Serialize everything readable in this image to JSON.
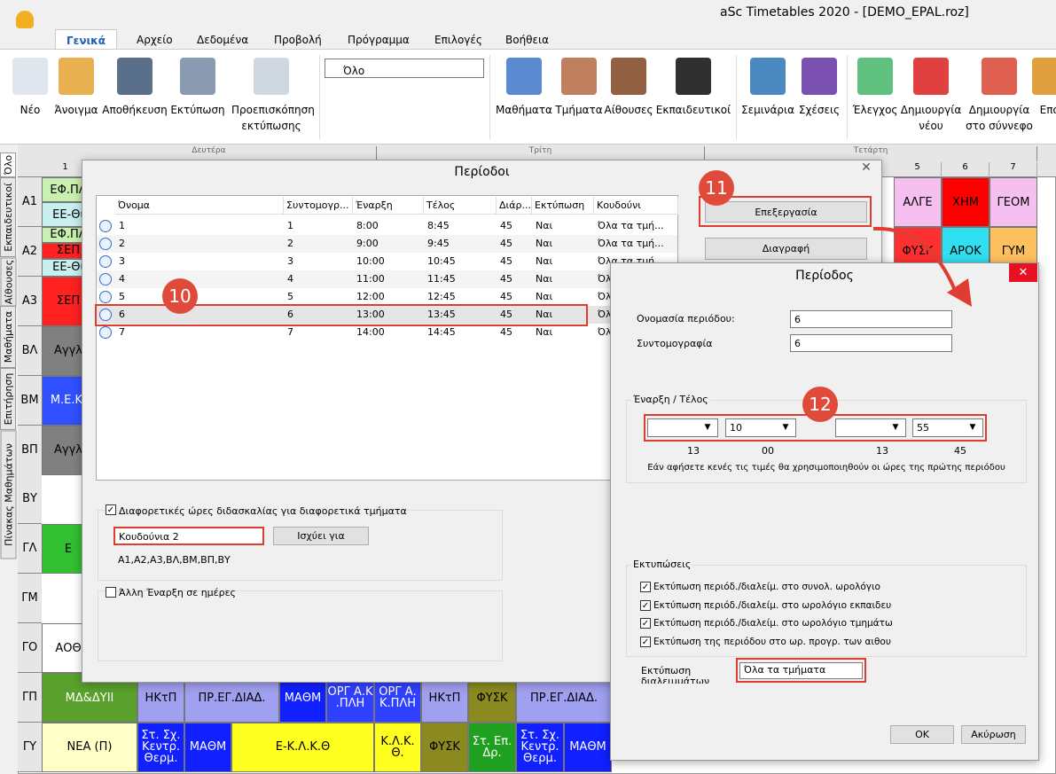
{
  "window": {
    "title": "aSc Timetables 2020  - [DEMO_EPAL.roz]"
  },
  "menu": [
    "Γενικά",
    "Αρχείο",
    "Δεδομένα",
    "Προβολή",
    "Πρόγραμμα",
    "Επιλογές",
    "Βοήθεια"
  ],
  "toolbar": {
    "buttons": [
      "Νέο",
      "Άνοιγμα",
      "Αποθήκευση",
      "Εκτύπωση",
      "Προεπισκόπηση\nεκτύπωσης",
      "Μαθήματα",
      "Τμήματα",
      "Αίθουσες",
      "Εκπαιδευτικοί",
      "Σεμινάρια",
      "Σχέσεις",
      "Έλεγχος",
      "Δημιουργία\nνέου",
      "Δημιουργία\nστο σύννεφο",
      "Επα"
    ],
    "view_select": "Όλο"
  },
  "side_tabs": [
    "Όλο",
    "Εκπαιδευτικοί",
    "Αίθουσες",
    "Μαθήματα",
    "Επιτήρηση",
    "Πίνακας Μαθημάτων"
  ],
  "timetable": {
    "days": [
      "Δευτέρα",
      "Τρίτη",
      "Τετάρτη"
    ],
    "periods": [
      "1",
      "5",
      "6",
      "7"
    ],
    "rows": [
      {
        "label": "Α1",
        "cells": [
          {
            "text": "ΕΦ.ΠΛ",
            "color": "#c8f0b0"
          },
          {
            "text": "ΕΕ-Θι",
            "color": "#c8f0f0"
          },
          {
            "text": "ΑΛΓΕ",
            "color": "#f5c0f0"
          },
          {
            "text": "ΧΗΜ",
            "color": "#ff0000"
          },
          {
            "text": "ΓΕΟΜ",
            "color": "#f5c0f0"
          }
        ]
      },
      {
        "label": "Α2",
        "cells": [
          {
            "text": "ΕΦ.ΠΛ",
            "color": "#c8f0b0"
          },
          {
            "text": "ΣΕΠ",
            "color": "#ff2020"
          },
          {
            "text": "ΕΕ-Θι",
            "color": "#c8f0f0"
          },
          {
            "text": "ΦΥΣΚ",
            "color": "#ff3030"
          },
          {
            "text": "ΑΡΟΚ",
            "color": "#30e0f0"
          },
          {
            "text": "ΓΥΜ",
            "color": "#ffc060"
          }
        ]
      },
      {
        "label": "Α3",
        "cells": [
          {
            "text": "ΣΕΠ",
            "color": "#ff2020"
          }
        ]
      },
      {
        "label": "ΒΛ",
        "cells": [
          {
            "text": "Αγγλ",
            "color": "#808080"
          }
        ]
      },
      {
        "label": "ΒΜ",
        "cells": [
          {
            "text": "Μ.Ε.Κ.",
            "color": "#3050ff"
          }
        ]
      },
      {
        "label": "ΒΠ",
        "cells": [
          {
            "text": "Αγγλ",
            "color": "#808080"
          }
        ]
      },
      {
        "label": "ΒΥ",
        "cells": []
      },
      {
        "label": "ΓΛ",
        "cells": [
          {
            "text": "Ε",
            "color": "#30c030"
          }
        ]
      },
      {
        "label": "ΓΜ",
        "cells": []
      },
      {
        "label": "ΓΟ",
        "cells": [
          {
            "text": "ΑΟΘ",
            "color": "#ffffff"
          }
        ]
      },
      {
        "label": "ΓΠ",
        "cells": [
          {
            "text": "ΜΔ&ΔΥΙΙ",
            "color": "#5aa02c"
          },
          {
            "text": "ΗΚτΠ",
            "color": "#a0a0f0"
          },
          {
            "text": "ΠΡ.ΕΓ.ΔΙΑΔ.",
            "color": "#a0a0f0"
          },
          {
            "text": "ΜΑΘΜ",
            "color": "#1020ff"
          },
          {
            "text": "ΟΡΓ Α.Κ\n.ΠΛΗ",
            "color": "#3040ff"
          },
          {
            "text": "ΟΡΓ Α.\nΚ.ΠΛΗ",
            "color": "#3040ff"
          },
          {
            "text": "ΗΚτΠ",
            "color": "#a0a0f0"
          },
          {
            "text": "ΦΥΣΚ",
            "color": "#8a8a20"
          },
          {
            "text": "ΠΡ.ΕΓ.ΔΙΑΔ.",
            "color": "#a0a0f0"
          }
        ]
      },
      {
        "label": "ΓΥ",
        "cells": [
          {
            "text": "ΝΕΑ (Π)",
            "color": "#ffffc8"
          },
          {
            "text": "Στ. Σχ.\nΚεντρ.\nΘερμ.",
            "color": "#1020ff"
          },
          {
            "text": "ΜΑΘΜ",
            "color": "#1020ff"
          },
          {
            "text": "Ε-Κ.Λ.Κ.Θ",
            "color": "#ffff20"
          },
          {
            "text": "Κ.Λ.Κ.\nΘ.",
            "color": "#ffff20"
          },
          {
            "text": "ΦΥΣΚ",
            "color": "#8a8a20"
          },
          {
            "text": "Στ. Επ.\nΔρ.",
            "color": "#20a020"
          },
          {
            "text": "Στ. Σχ.\nΚεντρ.\nΘερμ.",
            "color": "#1020ff"
          },
          {
            "text": "ΜΑΘΜ",
            "color": "#1020ff"
          }
        ]
      }
    ]
  },
  "periods_dialog": {
    "title": "Περίοδοι",
    "columns": [
      "Όνομα",
      "Συντομογρ...",
      "Έναρξη",
      "Τέλος",
      "Διάρ...",
      "Εκτύπωση",
      "Κουδούνι"
    ],
    "rows": [
      [
        "1",
        "1",
        "8:00",
        "8:45",
        "45",
        "Ναι",
        "Όλα τα τμή..."
      ],
      [
        "2",
        "2",
        "9:00",
        "9:45",
        "45",
        "Ναι",
        "Όλα τα τμή..."
      ],
      [
        "3",
        "3",
        "10:00",
        "10:45",
        "45",
        "Ναι",
        "Όλα τα τμή..."
      ],
      [
        "4",
        "4",
        "11:00",
        "11:45",
        "45",
        "Ναι",
        "Όλα τα τμή..."
      ],
      [
        "5",
        "5",
        "12:00",
        "12:45",
        "45",
        "Ναι",
        "Όλα τα τμή..."
      ],
      [
        "6",
        "6",
        "13:00",
        "13:45",
        "45",
        "Ναι",
        "Όλα τα τμή..."
      ],
      [
        "7",
        "7",
        "14:00",
        "14:45",
        "45",
        "Ναι",
        "Όλα τα τμή..."
      ]
    ],
    "different_hours": "Διαφορετικές ώρες διδασκαλίας για διαφορετικά τμήματα",
    "bells_select": "Κουδούνια 2",
    "applies_button": "Ισχύει για",
    "applies_classes": "Α1,Α2,Α3,ΒΛ,ΒΜ,ΒΠ,ΒΥ",
    "other_start": "Άλλη Έναρξη σε ημέρες",
    "edit_button": "Επεξεργασία",
    "delete_button": "Διαγραφή",
    "badges": [
      "10",
      "11"
    ]
  },
  "period_dialog": {
    "title": "Περίοδος",
    "name_label": "Ονομασία περιόδου:",
    "name_value": "6",
    "short_label": "Συντομογραφία",
    "short_value": "6",
    "time_group": "Έναρξη / Τέλος",
    "start_minute": "10",
    "end_minute": "55",
    "hints": [
      "13",
      "00",
      "13",
      "45"
    ],
    "note": "Εάν αφήσετε κενές τις τιμές θα χρησιμοποιηθούν οι ώρες της πρώτης περιόδου",
    "print_group": "Εκτυπώσεις",
    "print_options": [
      "Εκτύπωση περιόδ./διαλείμ. στο συνολ. ωρολόγιο",
      "Εκτύπωση περιόδ./διαλείμ. στο ωρολόγιο εκπαιδευ",
      "Εκτύπωση περιόδ./διαλείμ. στο ωρολόγιο τμημάτω",
      "Εκτύπωση της περιόδου στο ωρ. προγρ. των αιθου"
    ],
    "breaks_label": "Εκτύπωση\nδιαλειμμάτων",
    "breaks_select": "Όλα τα τμήματα",
    "ok": "OK",
    "cancel": "Ακύρωση",
    "badge": "12"
  }
}
